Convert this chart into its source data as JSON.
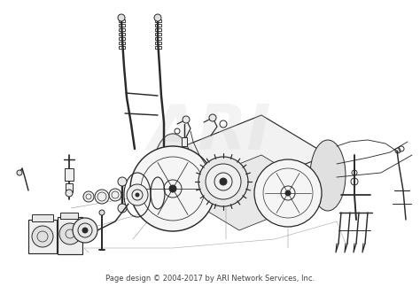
{
  "footer_text": "Page design © 2004-2017 by ARI Network Services, Inc.",
  "footer_fontsize": 6.0,
  "footer_color": "#444444",
  "background_color": "#ffffff",
  "watermark_text": "ARI",
  "watermark_color": "#d0d0d0",
  "watermark_fontsize": 52,
  "watermark_alpha": 0.25,
  "figsize": [
    4.74,
    3.24
  ],
  "dpi": 100,
  "line_color": "#2a2a2a",
  "line_width": 0.7
}
